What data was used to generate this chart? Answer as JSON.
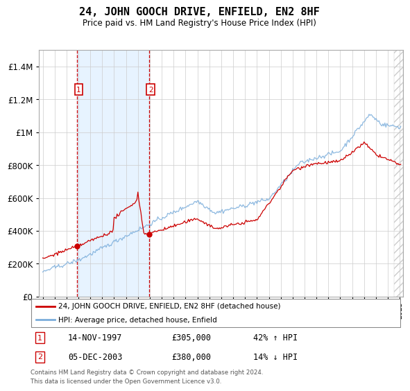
{
  "title": "24, JOHN GOOCH DRIVE, ENFIELD, EN2 8HF",
  "subtitle": "Price paid vs. HM Land Registry's House Price Index (HPI)",
  "legend_label_red": "24, JOHN GOOCH DRIVE, ENFIELD, EN2 8HF (detached house)",
  "legend_label_blue": "HPI: Average price, detached house, Enfield",
  "annotation1_date": "14-NOV-1997",
  "annotation1_price": "£305,000",
  "annotation1_hpi": "42% ↑ HPI",
  "annotation2_date": "05-DEC-2003",
  "annotation2_price": "£380,000",
  "annotation2_hpi": "14% ↓ HPI",
  "footnote": "Contains HM Land Registry data © Crown copyright and database right 2024.\nThis data is licensed under the Open Government Licence v3.0.",
  "red_color": "#cc0000",
  "blue_color": "#7aaddb",
  "shade_color": "#ddeeff",
  "ylim": [
    0,
    1500000
  ],
  "yticks": [
    0,
    200000,
    400000,
    600000,
    800000,
    1000000,
    1200000,
    1400000
  ],
  "sale1_x": 1997.875,
  "sale1_y": 305000,
  "sale2_x": 2003.917,
  "sale2_y": 380000,
  "vline1_x": 1997.875,
  "vline2_x": 2003.917,
  "shade_x1": 1997.875,
  "shade_x2": 2003.917,
  "xlim_left": 1994.7,
  "xlim_right": 2025.3
}
